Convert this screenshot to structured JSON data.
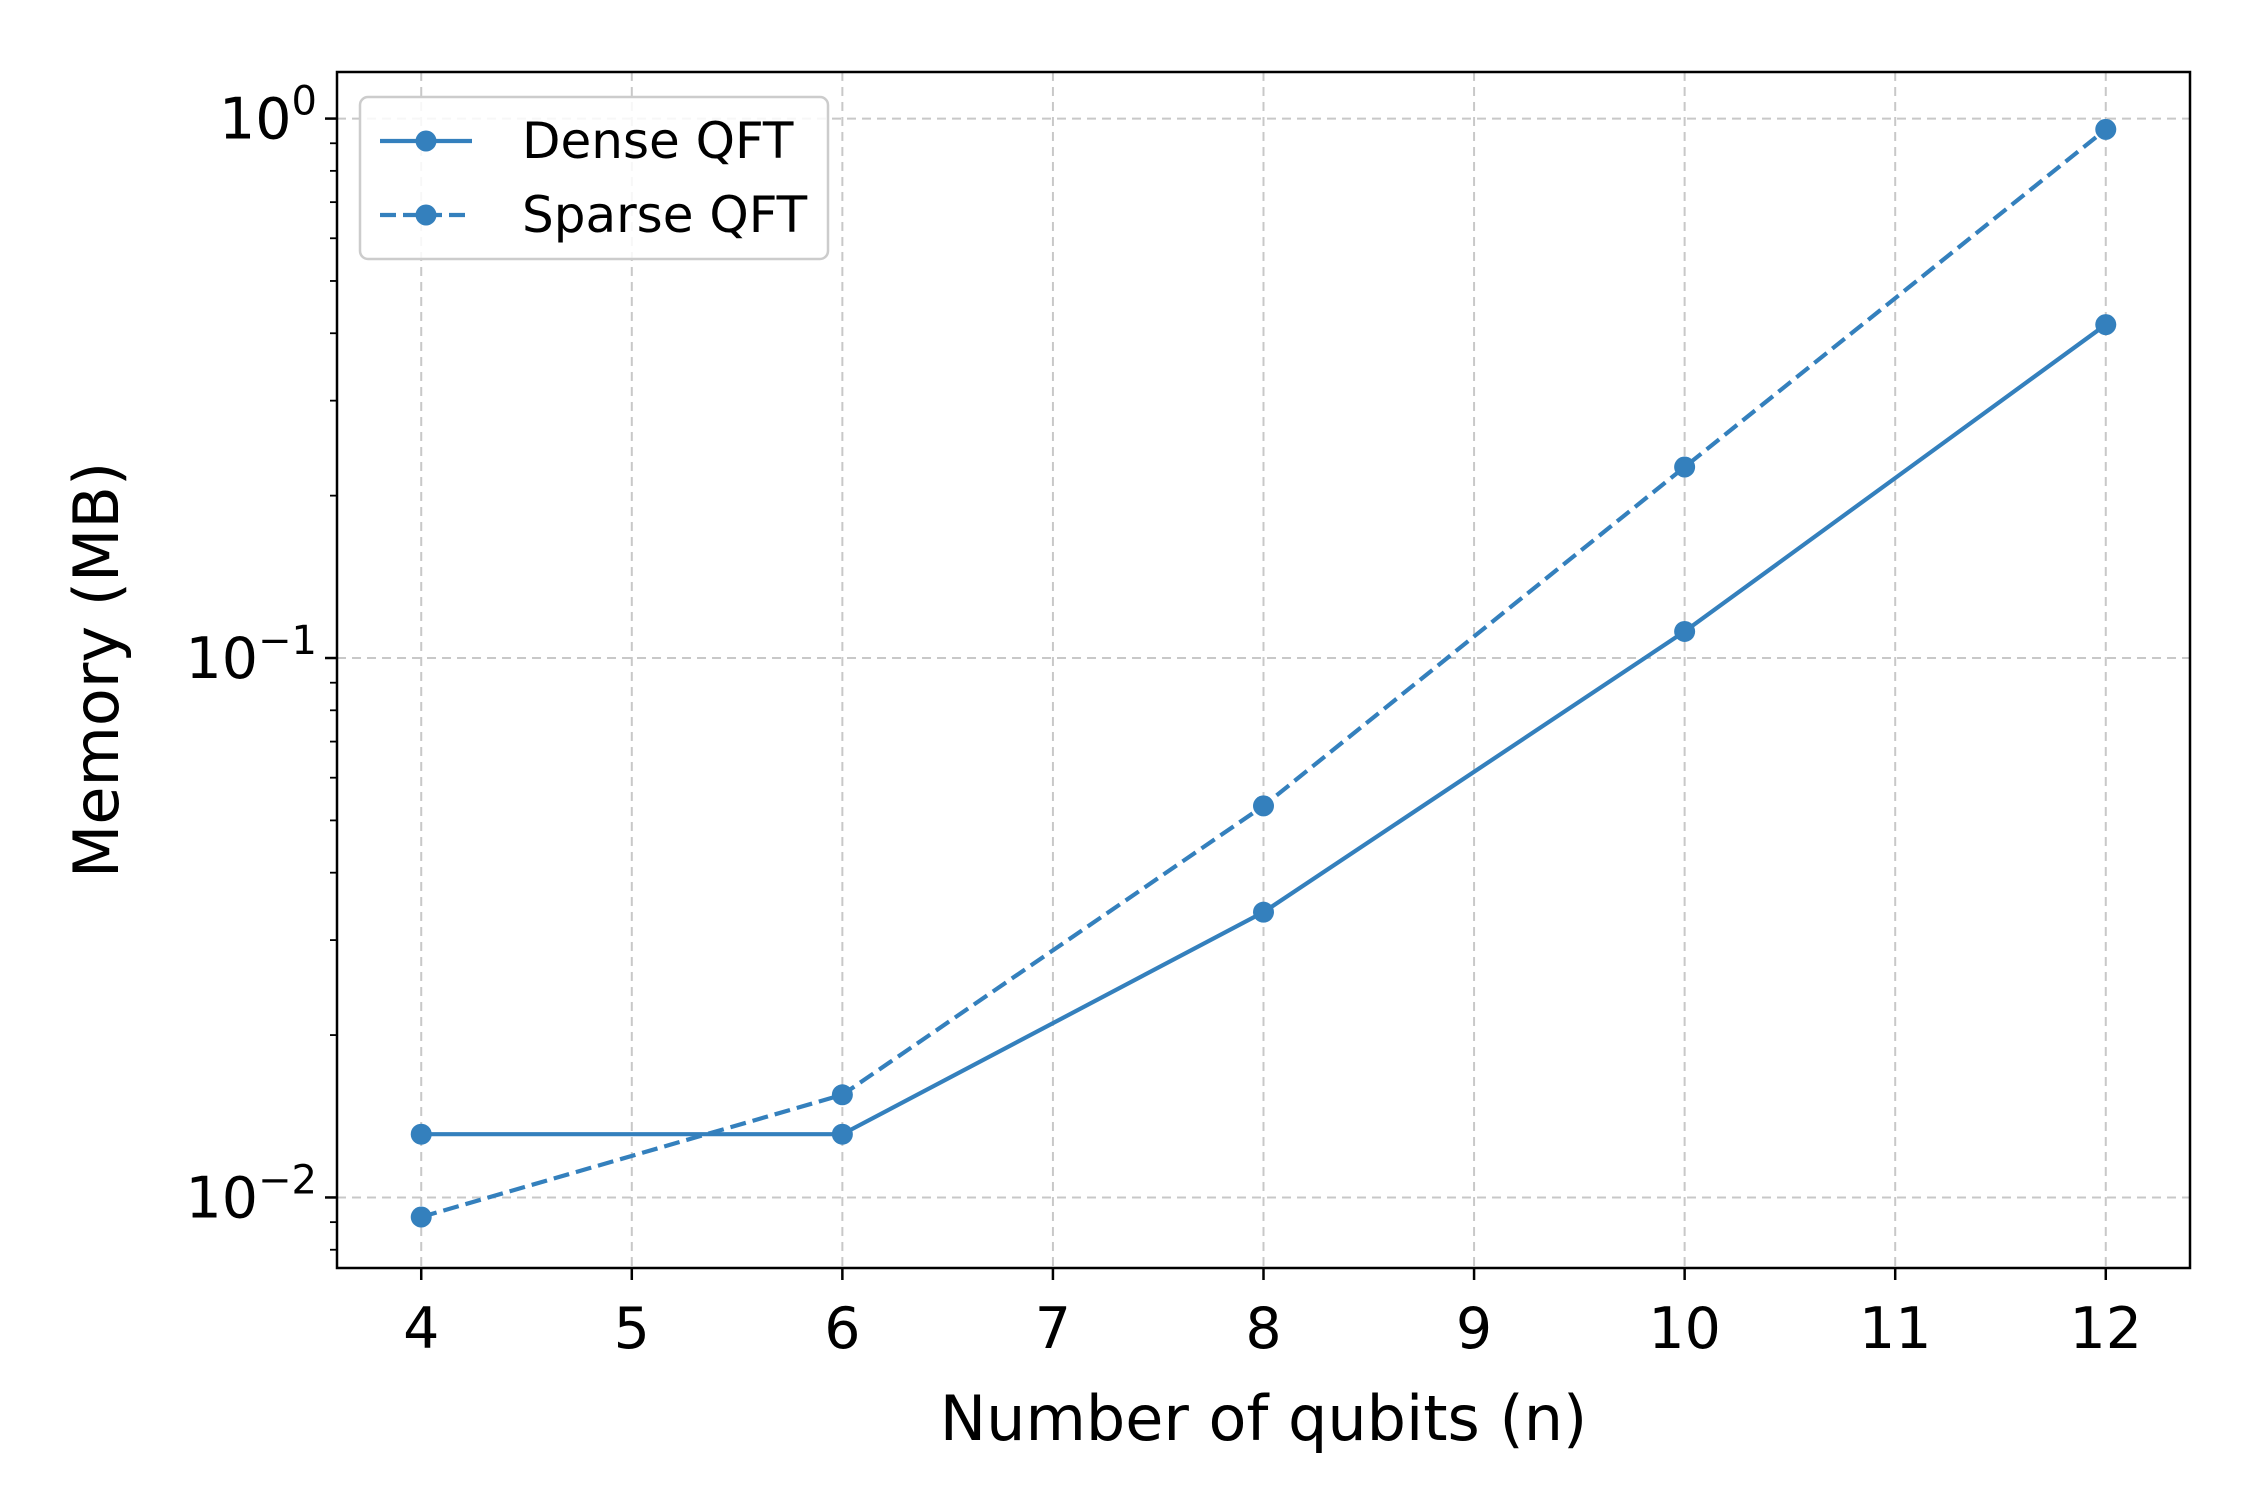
{
  "chart_data": {
    "type": "line",
    "xlabel": "Number of qubits (n)",
    "ylabel": "Memory (MB)",
    "xlim": [
      3.6,
      12.4
    ],
    "ylim": [
      0.0074,
      1.22
    ],
    "yscale": "log",
    "grid": true,
    "legend_position": "top-left",
    "x_ticks": [
      4,
      5,
      6,
      7,
      8,
      9,
      10,
      11,
      12
    ],
    "y_ticks": [
      {
        "value": 0.01,
        "base": "10",
        "exp": "−2"
      },
      {
        "value": 0.1,
        "base": "10",
        "exp": "−1"
      },
      {
        "value": 1,
        "base": "10",
        "exp": "0"
      }
    ],
    "series": [
      {
        "name": "Dense QFT",
        "style": "solid",
        "color": "#3480bd",
        "x": [
          4,
          6,
          8,
          10,
          12
        ],
        "y": [
          0.0131,
          0.0131,
          0.0338,
          0.112,
          0.415
        ]
      },
      {
        "name": "Sparse QFT",
        "style": "dashed",
        "color": "#3480bd",
        "x": [
          4,
          6,
          8,
          10,
          12
        ],
        "y": [
          0.0092,
          0.0155,
          0.0532,
          0.226,
          0.955
        ]
      }
    ]
  }
}
